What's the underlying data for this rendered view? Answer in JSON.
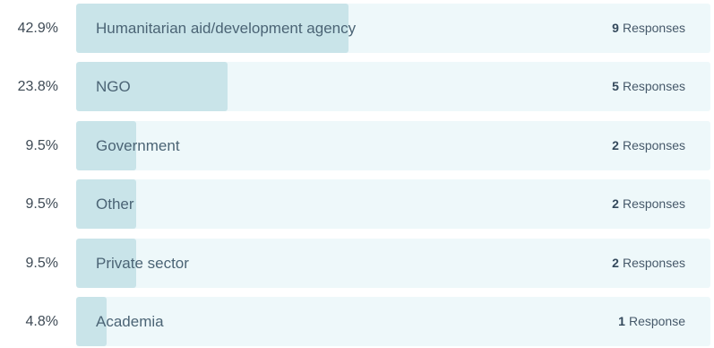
{
  "chart_data": {
    "type": "bar",
    "orientation": "horizontal",
    "categories": [
      "Humanitarian aid/development agency",
      "NGO",
      "Government",
      "Other",
      "Private sector",
      "Academia"
    ],
    "percentages": [
      "42.9%",
      "23.8%",
      "9.5%",
      "9.5%",
      "9.5%",
      "4.8%"
    ],
    "values": [
      42.9,
      23.8,
      9.5,
      9.5,
      9.5,
      4.8
    ],
    "counts": [
      9,
      5,
      2,
      2,
      2,
      1
    ],
    "count_suffixes": [
      "Responses",
      "Responses",
      "Responses",
      "Responses",
      "Responses",
      "Response"
    ],
    "xlim": [
      0,
      100
    ]
  },
  "colors": {
    "track": "#eef8fa",
    "fill": "#c9e4e9",
    "label": "#4b6475"
  }
}
